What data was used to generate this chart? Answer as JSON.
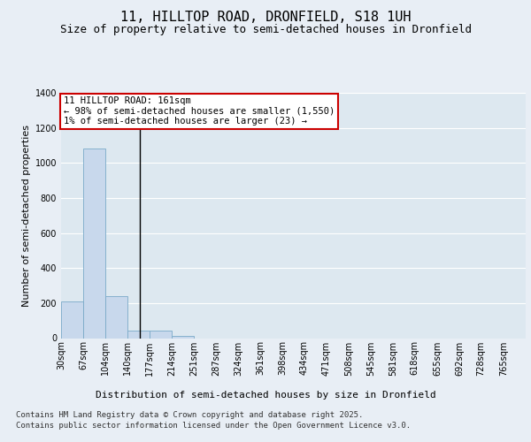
{
  "title_line1": "11, HILLTOP ROAD, DRONFIELD, S18 1UH",
  "title_line2": "Size of property relative to semi-detached houses in Dronfield",
  "xlabel": "Distribution of semi-detached houses by size in Dronfield",
  "ylabel": "Number of semi-detached properties",
  "bins": [
    30,
    67,
    104,
    140,
    177,
    214,
    251,
    287,
    324,
    361,
    398,
    434,
    471,
    508,
    545,
    581,
    618,
    655,
    692,
    728,
    765
  ],
  "values": [
    210,
    1080,
    240,
    45,
    45,
    15,
    0,
    0,
    0,
    0,
    0,
    0,
    0,
    0,
    0,
    0,
    0,
    0,
    0,
    0
  ],
  "bar_color": "#c8d8ec",
  "bar_edge_color": "#7aaac8",
  "vline_x": 161,
  "vline_color": "#000000",
  "annotation_line1": "11 HILLTOP ROAD: 161sqm",
  "annotation_line2": "← 98% of semi-detached houses are smaller (1,550)",
  "annotation_line3": "1% of semi-detached houses are larger (23) →",
  "annotation_box_color": "#ffffff",
  "annotation_box_edge": "#cc0000",
  "ylim": [
    0,
    1400
  ],
  "yticks": [
    0,
    200,
    400,
    600,
    800,
    1000,
    1200,
    1400
  ],
  "plot_bg": "#dde8f0",
  "fig_bg": "#e8eef5",
  "grid_color": "#ffffff",
  "footnote_line1": "Contains HM Land Registry data © Crown copyright and database right 2025.",
  "footnote_line2": "Contains public sector information licensed under the Open Government Licence v3.0.",
  "title_fontsize": 11,
  "subtitle_fontsize": 9,
  "ylabel_fontsize": 8,
  "xlabel_fontsize": 8,
  "tick_fontsize": 7,
  "annotation_fontsize": 7.5,
  "footnote_fontsize": 6.5
}
